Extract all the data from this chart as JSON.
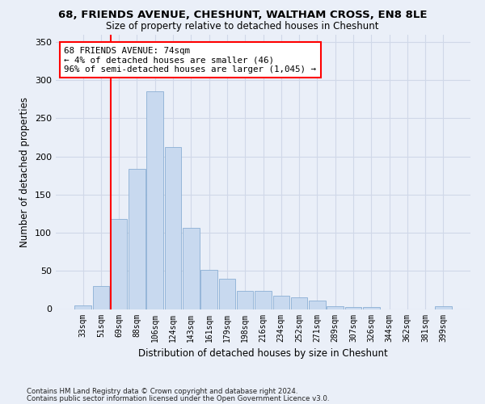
{
  "title": "68, FRIENDS AVENUE, CHESHUNT, WALTHAM CROSS, EN8 8LE",
  "subtitle": "Size of property relative to detached houses in Cheshunt",
  "xlabel": "Distribution of detached houses by size in Cheshunt",
  "ylabel": "Number of detached properties",
  "bar_color": "#c8d9ef",
  "bar_edge_color": "#8bafd4",
  "categories": [
    "33sqm",
    "51sqm",
    "69sqm",
    "88sqm",
    "106sqm",
    "124sqm",
    "143sqm",
    "161sqm",
    "179sqm",
    "198sqm",
    "216sqm",
    "234sqm",
    "252sqm",
    "271sqm",
    "289sqm",
    "307sqm",
    "326sqm",
    "344sqm",
    "362sqm",
    "381sqm",
    "399sqm"
  ],
  "values": [
    5,
    30,
    118,
    184,
    285,
    212,
    106,
    51,
    40,
    24,
    24,
    18,
    15,
    11,
    4,
    3,
    3,
    0,
    0,
    0,
    4
  ],
  "ylim": [
    0,
    360
  ],
  "yticks": [
    0,
    50,
    100,
    150,
    200,
    250,
    300,
    350
  ],
  "vline_x_idx": 2,
  "annotation_line1": "68 FRIENDS AVENUE: 74sqm",
  "annotation_line2": "← 4% of detached houses are smaller (46)",
  "annotation_line3": "96% of semi-detached houses are larger (1,045) →",
  "annotation_box_color": "white",
  "annotation_box_edge_color": "red",
  "vline_color": "red",
  "footer1": "Contains HM Land Registry data © Crown copyright and database right 2024.",
  "footer2": "Contains public sector information licensed under the Open Government Licence v3.0.",
  "background_color": "#eaeff8",
  "grid_color": "#d0d8e8"
}
